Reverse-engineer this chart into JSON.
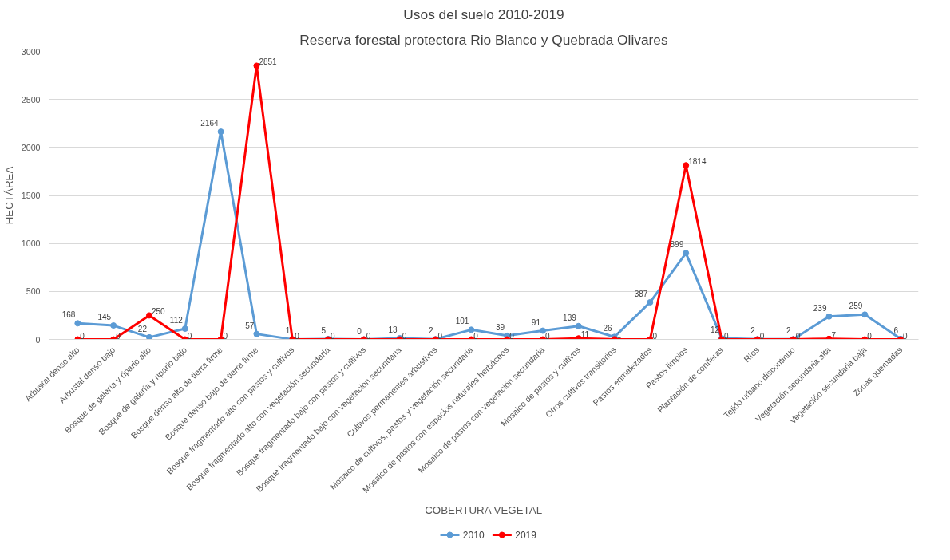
{
  "chart_data": {
    "type": "line",
    "title": "Usos del suelo 2010-2019",
    "subtitle": "Reserva forestal protectora Rio Blanco y Quebrada Olivares",
    "xlabel": "COBERTURA VEGETAL",
    "ylabel": "HECTÁREA",
    "categories": [
      "Arbustal denso alto",
      "Arbustal denso bajo",
      "Bosque de galería y ripario alto",
      "Bosque de galería y ripario bajo",
      "Bosque denso alto de tierra firme",
      "Bosque denso bajo de tierra firme",
      "Bosque fragmentado alto con pastos y cultivos",
      "Bosque fragmentado alto con vegetación secundaria",
      "Bosque fragmentado bajo con pastos y cultivos",
      "Bosque fragmentado bajo con vegetación secundaria",
      "Cultivos permanentes arbustivos",
      "Mosaico de cultivos, pastos y vegetación secundaria",
      "Mosaico de pastos con espacios naturales herbáceos",
      "Mosaico de pastos con vegetación secundaria",
      "Mosaico de pastos y cultivos",
      "Otros cultivos transitorios",
      "Pastos enmalezados",
      "Pastos limpios",
      "Plantación de coníferas",
      "Ríos",
      "Tejido urbano discontinuo",
      "Vegetación secundaria alta",
      "Vegetación secundaria baja",
      "Zonas quemadas"
    ],
    "series": [
      {
        "name": "2010",
        "color": "#5b9bd5",
        "values": [
          168,
          145,
          22,
          112,
          2164,
          57,
          1,
          5,
          0,
          13,
          2,
          101,
          39,
          91,
          139,
          26,
          387,
          899,
          12,
          2,
          2,
          239,
          259,
          6
        ]
      },
      {
        "name": "2019",
        "color": "#ff0000",
        "values": [
          0,
          0,
          250,
          0,
          0,
          2851,
          0,
          0,
          0,
          0,
          0,
          0,
          0,
          0,
          11,
          1,
          0,
          1814,
          0,
          0,
          0,
          7,
          0,
          0
        ]
      }
    ],
    "ylim": [
      0,
      3000
    ],
    "yticks": [
      0,
      500,
      1000,
      1500,
      2000,
      2500,
      3000
    ],
    "grid": "y",
    "legend": "bottom",
    "marker": "circle",
    "line_style": "solid",
    "data_labels": true
  }
}
